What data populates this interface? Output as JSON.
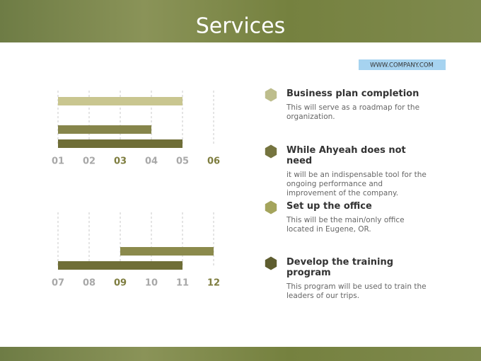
{
  "title": "Services",
  "url": "WWW.COMPANY.COM",
  "items": [
    {
      "heading": "Business plan completion",
      "text": "This will serve as a roadmap for the organization.",
      "color": "#bdbd8c"
    },
    {
      "heading": "While Ahyeah does not need",
      "text": "it will be an indispensable tool for the ongoing performance and improvement of the company.",
      "color": "#75743f"
    },
    {
      "heading": "Set up the office",
      "text": "This will be the main/only office located in Eugene, OR.",
      "color": "#a4a45c"
    },
    {
      "heading": "Develop the training program",
      "text": "This program will be used to train the leaders of our trips.",
      "color": "#5e5d2f"
    }
  ],
  "chart_data": [
    {
      "type": "gantt",
      "xlim": [
        1,
        6
      ],
      "xticks": [
        {
          "value": 1,
          "label": "01"
        },
        {
          "value": 2,
          "label": "02"
        },
        {
          "value": 3,
          "label": "03"
        },
        {
          "value": 4,
          "label": "04"
        },
        {
          "value": 5,
          "label": "05"
        },
        {
          "value": 6,
          "label": "06"
        }
      ],
      "highlight": [
        3,
        6
      ],
      "starts": [
        1,
        null,
        1,
        1
      ],
      "ends": [
        5,
        null,
        4,
        5
      ],
      "colors": [
        "#c9c690",
        null,
        "#86854b",
        "#6f6e37"
      ]
    },
    {
      "type": "gantt",
      "xlim": [
        7,
        12
      ],
      "xticks": [
        {
          "value": 7,
          "label": "07"
        },
        {
          "value": 8,
          "label": "08"
        },
        {
          "value": 9,
          "label": "09"
        },
        {
          "value": 10,
          "label": "10"
        },
        {
          "value": 11,
          "label": "11"
        },
        {
          "value": 12,
          "label": "12"
        }
      ],
      "highlight": [
        9,
        12
      ],
      "starts": [
        null,
        null,
        9,
        7
      ],
      "ends": [
        null,
        null,
        12,
        11
      ],
      "colors": [
        null,
        null,
        "#8b8a4c",
        "#6f6e37"
      ]
    }
  ]
}
